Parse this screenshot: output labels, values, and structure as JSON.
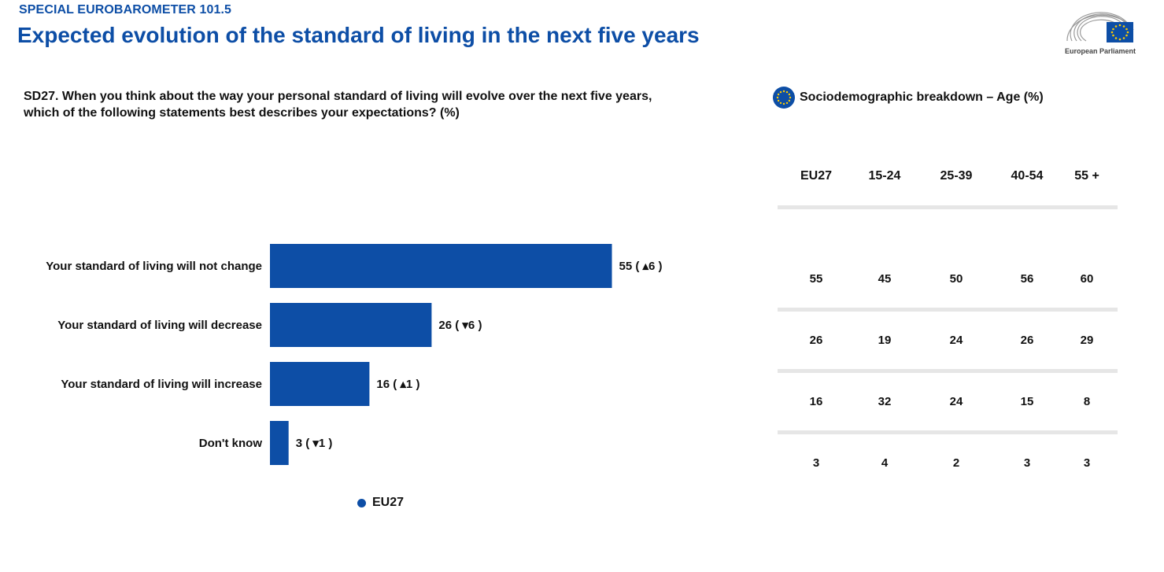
{
  "header": {
    "survey_label": "SPECIAL EUROBAROMETER 101.5",
    "title": "Expected evolution of the standard of living in the next five years"
  },
  "logo": {
    "text": "European Parliament",
    "icon": "eu-flag-icon"
  },
  "question": "SD27. When you think about the way your personal standard of living will evolve over the next five years, which of the following statements best describes your expectations? (%)",
  "breakdown": {
    "icon": "eu-stars-icon",
    "title": "Sociodemographic breakdown – Age (%)",
    "columns": [
      "EU27",
      "15-24",
      "25-39",
      "40-54",
      "55 +"
    ],
    "rows": [
      [
        "55",
        "45",
        "50",
        "56",
        "60"
      ],
      [
        "26",
        "19",
        "24",
        "26",
        "29"
      ],
      [
        "16",
        "32",
        "24",
        "15",
        "8"
      ],
      [
        "3",
        "4",
        "2",
        "3",
        "3"
      ]
    ]
  },
  "colors": {
    "accent": "#0d4ea6",
    "text": "#111111",
    "divider": "#e6e6e6"
  },
  "chart_data": {
    "type": "bar",
    "orientation": "horizontal",
    "categories": [
      "Your standard of living will not change",
      "Your standard of living will decrease",
      "Your standard of living will increase",
      "Don't know"
    ],
    "series": [
      {
        "name": "EU27",
        "values": [
          55,
          26,
          16,
          3
        ]
      }
    ],
    "changes": [
      {
        "direction": "up",
        "value": 6
      },
      {
        "direction": "down",
        "value": 6
      },
      {
        "direction": "up",
        "value": 1
      },
      {
        "direction": "down",
        "value": 1
      }
    ],
    "change_symbols": {
      "up": "▴",
      "down": "▾"
    },
    "bar_color": "#0d4ea6",
    "legend": {
      "position": "bottom",
      "label": "EU27"
    }
  }
}
